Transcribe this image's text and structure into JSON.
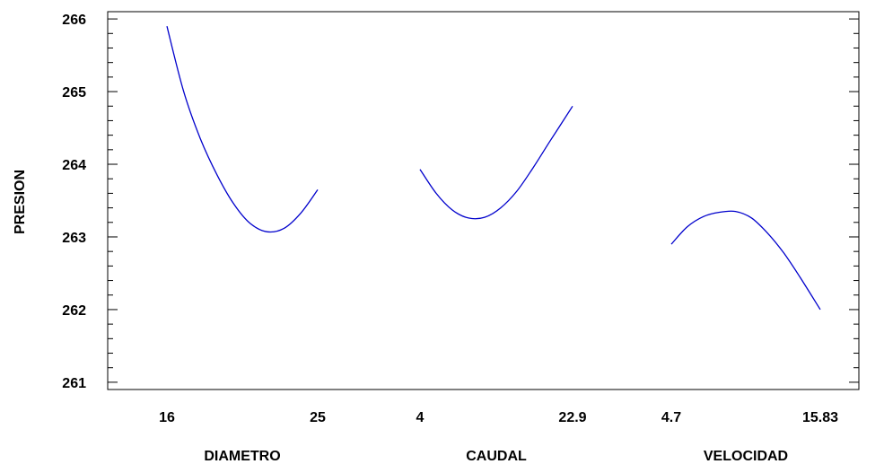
{
  "chart_data": {
    "type": "line",
    "ylabel": "PRESION",
    "ylim": [
      260.9,
      266.1
    ],
    "yticks": [
      261,
      262,
      263,
      264,
      265,
      266
    ],
    "grid": false,
    "legend": "none",
    "line_color": "#0000cc",
    "panels": [
      {
        "xlabel": "DIAMETRO",
        "xlim": [
          16,
          25
        ],
        "xtick_labels": [
          "16",
          "25"
        ],
        "x": [
          16,
          17,
          18,
          19,
          20,
          21,
          22,
          23,
          24,
          25
        ],
        "y": [
          265.9,
          265.0,
          264.35,
          263.85,
          263.45,
          263.18,
          263.07,
          263.12,
          263.33,
          263.65
        ]
      },
      {
        "xlabel": "CAUDAL",
        "xlim": [
          4,
          22.9
        ],
        "xtick_labels": [
          "4",
          "22.9"
        ],
        "x": [
          4,
          6,
          8,
          10,
          12,
          14,
          16,
          18,
          20,
          22.9
        ],
        "y": [
          263.93,
          263.6,
          263.37,
          263.26,
          263.27,
          263.4,
          263.63,
          263.95,
          264.3,
          264.8
        ]
      },
      {
        "xlabel": "VELOCIDAD",
        "xlim": [
          4.7,
          15.83
        ],
        "xtick_labels": [
          "4.7",
          "15.83"
        ],
        "x": [
          4.7,
          5.9,
          7.1,
          8.3,
          9.5,
          10.7,
          11.9,
          13.1,
          14.3,
          15.83
        ],
        "y": [
          262.9,
          263.14,
          263.28,
          263.34,
          263.35,
          263.26,
          263.05,
          262.78,
          262.45,
          262.0
        ]
      }
    ]
  }
}
